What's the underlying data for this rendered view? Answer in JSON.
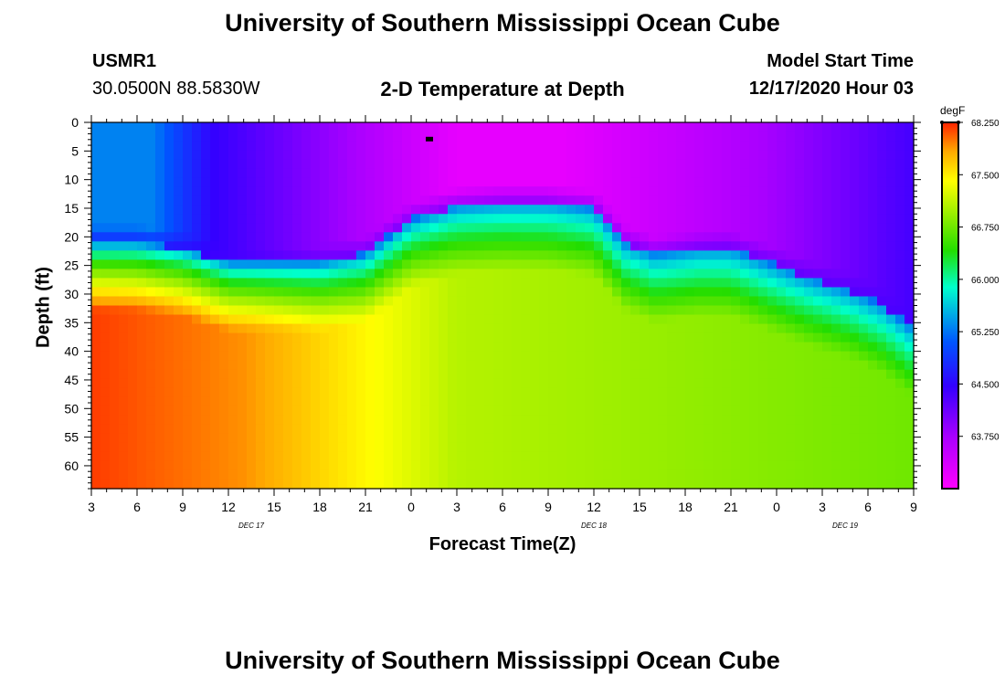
{
  "page": {
    "title_top": "University of Southern Mississippi Ocean Cube",
    "title_bottom": "University of Southern Mississippi Ocean Cube",
    "station": "USMR1",
    "coords": "30.0500N 88.5830W",
    "model_start_label": "Model Start Time",
    "model_start_value": "12/17/2020 Hour 03"
  },
  "chart_data": {
    "type": "heatmap",
    "title": "2-D Temperature at Depth",
    "xlabel": "Forecast Time(Z)",
    "ylabel": "Depth (ft)",
    "x_range_hours": [
      0,
      54
    ],
    "x_ticks": [
      "3",
      "6",
      "9",
      "12",
      "15",
      "18",
      "21",
      "0",
      "3",
      "6",
      "9",
      "12",
      "15",
      "18",
      "21",
      "0",
      "3",
      "6",
      "9"
    ],
    "day_labels": [
      {
        "label": "DEC 17",
        "hour": 10.5
      },
      {
        "label": "DEC 18",
        "hour": 33
      },
      {
        "label": "DEC 19",
        "hour": 49.5
      }
    ],
    "y_range_ft": [
      0,
      64
    ],
    "y_ticks": [
      0,
      5,
      10,
      15,
      20,
      25,
      30,
      35,
      40,
      45,
      50,
      55,
      60
    ],
    "colorbar": {
      "unit": "degF",
      "labels": [
        "68.250",
        "67.500",
        "66.750",
        "66.000",
        "65.250",
        "64.500",
        "63.750"
      ],
      "min": 63.0,
      "max": 68.25
    },
    "thermocline_depth_ft": {
      "hours": [
        0,
        3,
        6,
        9,
        12,
        15,
        18,
        21,
        24,
        27,
        30,
        33,
        35,
        37,
        40,
        42,
        44,
        47,
        50,
        52,
        54
      ],
      "depths": [
        21,
        21,
        22,
        24.5,
        24.5,
        24.5,
        23,
        17,
        14.5,
        14,
        14,
        15,
        21,
        23,
        22,
        22,
        24,
        27,
        29.5,
        32,
        36
      ]
    },
    "marker": {
      "hour": 22.2,
      "depth_ft": 3
    }
  }
}
